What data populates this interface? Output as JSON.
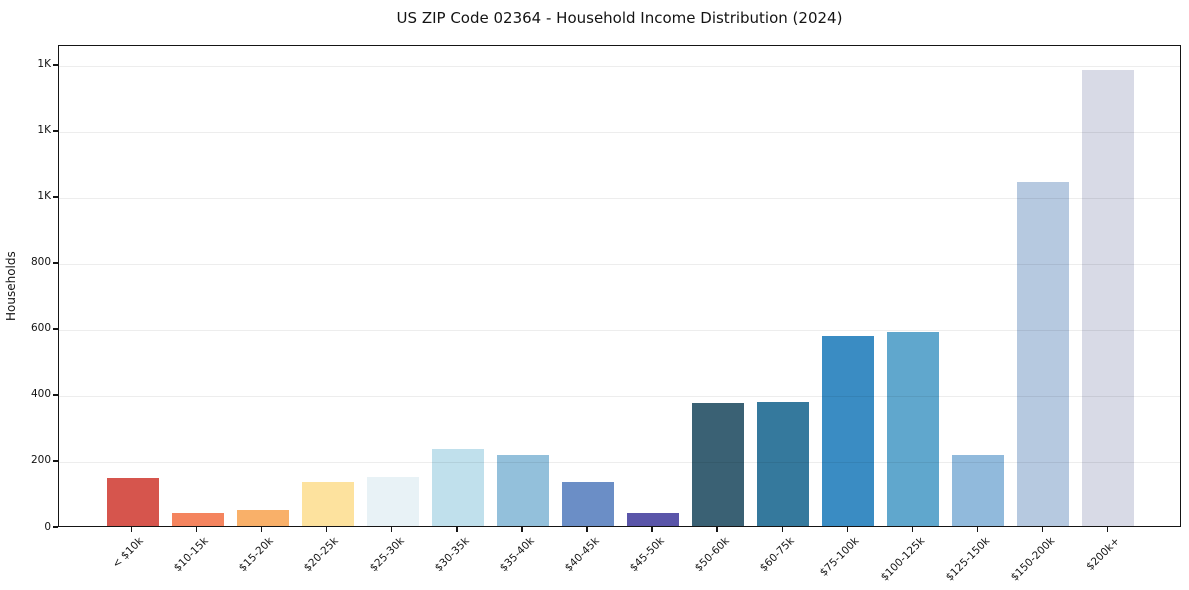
{
  "chart_data": {
    "type": "bar",
    "title": "US ZIP Code 02364 - Household Income Distribution (2024)",
    "xlabel": "",
    "ylabel": "Households",
    "categories": [
      "< $10k",
      "$10-15k",
      "$15-20k",
      "$20-25k",
      "$25-30k",
      "$30-35k",
      "$35-40k",
      "$40-45k",
      "$45-50k",
      "$50-60k",
      "$60-75k",
      "$75-100k",
      "$100-125k",
      "$125-150k",
      "$150-200k",
      "$200k+"
    ],
    "values": [
      145,
      38,
      48,
      134,
      148,
      232,
      214,
      133,
      39,
      373,
      376,
      576,
      589,
      214,
      1043,
      1381
    ],
    "bar_colors": [
      "#d6554d",
      "#f4845e",
      "#f9b069",
      "#fde29e",
      "#e8f2f6",
      "#c0e0ec",
      "#93c0db",
      "#6b8ec6",
      "#5a55a9",
      "#3a6174",
      "#35799d",
      "#3a8cc3",
      "#60a7cd",
      "#91badc",
      "#b6c9e0",
      "#d8dae6"
    ],
    "ylim": [
      0,
      1460
    ],
    "ytick_values": [
      0,
      200,
      400,
      600,
      800,
      1000,
      1200,
      1400
    ],
    "ytick_labels": [
      "0",
      "200",
      "400",
      "600",
      "800",
      "1K",
      "1K",
      "1K"
    ],
    "grid": "horizontal",
    "grid_color": "#ececec",
    "background": "#ffffff",
    "spine_color": "#151515",
    "legend": "none"
  }
}
